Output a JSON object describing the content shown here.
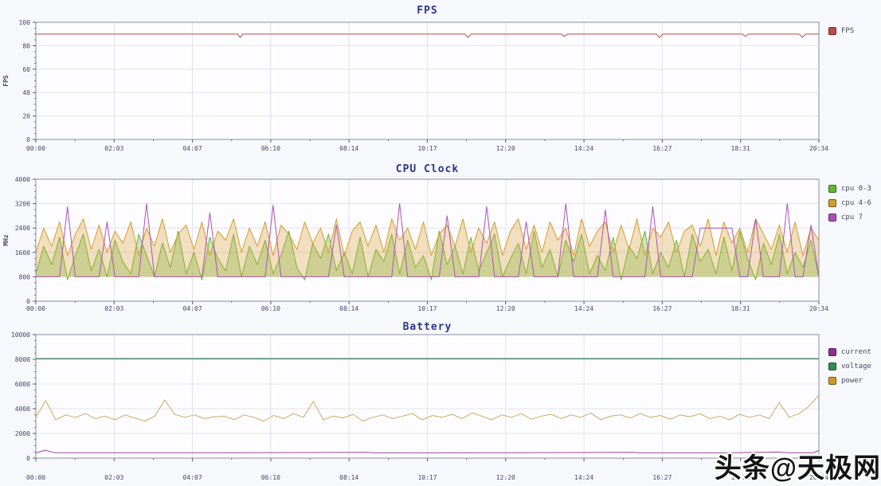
{
  "watermark": {
    "text": "头条@天极网"
  },
  "chart_data": [
    {
      "type": "line",
      "title": "FPS",
      "ylabel": "FPS",
      "ylim": [
        0,
        100
      ],
      "y_ticks": [
        0,
        20,
        40,
        60,
        80,
        100
      ],
      "x_max_seconds": 1234,
      "x_tick_labels": [
        "00:00",
        "02:03",
        "04:07",
        "06:10",
        "08:14",
        "10:17",
        "12:20",
        "14:24",
        "16:27",
        "18:31",
        "20:34"
      ],
      "legend": [
        {
          "label": "FPS",
          "color": "#bf4a45"
        }
      ],
      "series": [
        {
          "name": "FPS",
          "color": "#bf4a45",
          "width": 1,
          "fill": "none",
          "points": [
            [
              0,
              90
            ],
            [
              50,
              90
            ],
            [
              100,
              90
            ],
            [
              150,
              90
            ],
            [
              200,
              90
            ],
            [
              250,
              90
            ],
            [
              310,
              90
            ],
            [
              318,
              90
            ],
            [
              322,
              87
            ],
            [
              326,
              90
            ],
            [
              400,
              90
            ],
            [
              500,
              90
            ],
            [
              600,
              90
            ],
            [
              676,
              90
            ],
            [
              681,
              87
            ],
            [
              686,
              90
            ],
            [
              750,
              90
            ],
            [
              828,
              90
            ],
            [
              833,
              88
            ],
            [
              838,
              90
            ],
            [
              900,
              90
            ],
            [
              978,
              90
            ],
            [
              983,
              87
            ],
            [
              988,
              90
            ],
            [
              1050,
              90
            ],
            [
              1113,
              90
            ],
            [
              1118,
              88
            ],
            [
              1123,
              90
            ],
            [
              1180,
              90
            ],
            [
              1203,
              90
            ],
            [
              1208,
              87
            ],
            [
              1213,
              90
            ],
            [
              1234,
              90
            ]
          ]
        }
      ]
    },
    {
      "type": "line",
      "title": "CPU Clock",
      "ylabel": "MHz",
      "ylim": [
        0,
        4000
      ],
      "y_ticks": [
        0,
        800,
        1600,
        2400,
        3200,
        4000
      ],
      "x_max_seconds": 1234,
      "x_tick_labels": [
        "00:00",
        "02:03",
        "04:07",
        "06:10",
        "08:14",
        "10:17",
        "12:20",
        "14:24",
        "16:27",
        "18:31",
        "20:34"
      ],
      "legend": [
        {
          "label": "cpu 0-3",
          "color": "#63b637"
        },
        {
          "label": "cpu 4-6",
          "color": "#d69c2b"
        },
        {
          "label": "cpu 7",
          "color": "#ab51b8"
        }
      ],
      "series": [
        {
          "name": "cpu 0-3",
          "color": "#63b637",
          "width": 1,
          "fill": "self",
          "fill_opacity": 0.32,
          "fill_base": 800,
          "values": [
            900,
            1800,
            1200,
            2100,
            700,
            1500,
            2200,
            1000,
            1700,
            800,
            2000,
            1300,
            900,
            2200,
            1500,
            800,
            1900,
            1100,
            2300,
            900,
            1600,
            700,
            2100,
            1400,
            1000,
            2200,
            800,
            1800,
            1200,
            2000,
            900,
            1500,
            2300,
            1100,
            700,
            1900,
            1400,
            2200,
            1000,
            1600,
            900,
            2100,
            800,
            1700,
            1300,
            2200,
            900,
            2000,
            1100,
            1500,
            700,
            2300,
            1200,
            1800,
            900,
            2100,
            1000,
            1600,
            2200,
            800,
            1400,
            1900,
            900,
            2300,
            1100,
            1700,
            800,
            2000,
            1300,
            2200,
            900,
            1500,
            1000,
            2100,
            700,
            1800,
            1400,
            2300,
            900,
            1600,
            1100,
            2000,
            800,
            2200,
            1300,
            1700,
            900,
            2100,
            1000,
            2300,
            1400,
            700,
            1900,
            1200,
            2200,
            900,
            1600,
            1100,
            2000,
            800
          ]
        },
        {
          "name": "cpu 4-6",
          "color": "#d69c2b",
          "width": 1,
          "fill": "self",
          "fill_opacity": 0.3,
          "fill_base": 800,
          "values": [
            1600,
            2400,
            1800,
            2600,
            1500,
            2200,
            2700,
            1700,
            2500,
            1600,
            2300,
            1900,
            2600,
            1500,
            2400,
            1800,
            2700,
            1600,
            2200,
            2500,
            1700,
            2600,
            1500,
            2300,
            2000,
            2700,
            1600,
            2400,
            1800,
            2600,
            1500,
            2500,
            2200,
            1700,
            2600,
            1900,
            2400,
            1600,
            2700,
            1500,
            2300,
            2600,
            1800,
            2500,
            1600,
            2700,
            2000,
            2400,
            1700,
            2600,
            1500,
            2200,
            2500,
            1800,
            2700,
            1600,
            2400,
            1900,
            2600,
            1500,
            2300,
            2700,
            1700,
            2500,
            1600,
            2600,
            2000,
            2400,
            1500,
            2700,
            1800,
            2300,
            2600,
            1600,
            2500,
            1700,
            2700,
            1500,
            2400,
            2100,
            2600,
            1600,
            2300,
            2500,
            1800,
            2700,
            1500,
            2600,
            1900,
            2400,
            1600,
            2700,
            2200,
            1700,
            2500,
            1600,
            2600,
            1500,
            2400,
            2000
          ]
        },
        {
          "name": "cpu 7",
          "color": "#ab51b8",
          "width": 1,
          "fill": "none",
          "values": [
            800,
            800,
            800,
            800,
            3100,
            800,
            800,
            800,
            800,
            2600,
            800,
            800,
            800,
            800,
            3200,
            800,
            800,
            800,
            800,
            800,
            800,
            800,
            2900,
            800,
            800,
            800,
            800,
            800,
            800,
            800,
            3150,
            800,
            800,
            800,
            800,
            800,
            800,
            800,
            2500,
            800,
            800,
            800,
            800,
            800,
            800,
            800,
            3200,
            800,
            800,
            800,
            800,
            800,
            2800,
            800,
            800,
            800,
            800,
            3100,
            800,
            800,
            800,
            800,
            2600,
            800,
            800,
            800,
            800,
            3200,
            800,
            800,
            800,
            800,
            3000,
            800,
            800,
            800,
            800,
            800,
            3100,
            800,
            800,
            800,
            800,
            800,
            2400,
            2400,
            2400,
            2400,
            2400,
            800,
            800,
            2700,
            800,
            800,
            800,
            3200,
            800,
            800,
            2500,
            800
          ]
        }
      ]
    },
    {
      "type": "line",
      "title": "Battery",
      "ylabel": "",
      "ylim": [
        0,
        10000
      ],
      "y_ticks": [
        0,
        2000,
        4000,
        6000,
        8000,
        10000
      ],
      "x_max_seconds": 1234,
      "x_tick_labels": [
        "00:00",
        "02:03",
        "04:07",
        "06:10",
        "08:14",
        "10:17",
        "12:20",
        "14:24",
        "16:27",
        "18:31",
        "20:34"
      ],
      "legend": [
        {
          "label": "current",
          "color": "#8e2f8e"
        },
        {
          "label": "voltage",
          "color": "#2f8e4f"
        },
        {
          "label": "power",
          "color": "#d09a28"
        }
      ],
      "series": [
        {
          "name": "voltage",
          "color": "#3f7f5f",
          "width": 1.3,
          "fill": "none",
          "points": [
            [
              0,
              8050
            ],
            [
              1234,
              8050
            ]
          ]
        },
        {
          "name": "power",
          "color": "#cfa95e",
          "width": 1,
          "fill": "none",
          "values": [
            3300,
            4650,
            3100,
            3500,
            3300,
            3600,
            3200,
            3400,
            3100,
            3500,
            3250,
            3000,
            3400,
            4700,
            3550,
            3300,
            3500,
            3200,
            3350,
            3400,
            3100,
            3500,
            3300,
            3000,
            3450,
            3200,
            3600,
            3300,
            4600,
            3100,
            3400,
            3250,
            3550,
            3000,
            3300,
            3500,
            3200,
            3400,
            3600,
            3100,
            3450,
            3300,
            3550,
            3200,
            3650,
            3400,
            3100,
            3500,
            3300,
            3600,
            3150,
            3400,
            3550,
            3200,
            3500,
            3300,
            3650,
            3100,
            3400,
            3500,
            3250,
            3600,
            3300,
            3450,
            3150,
            3500,
            3350,
            3600,
            3200,
            3400,
            3100,
            3550,
            3300,
            3500,
            3200,
            4500,
            3300,
            3600,
            4200,
            5100
          ]
        },
        {
          "name": "current",
          "color": "#9a4a9a",
          "width": 1,
          "fill": "none",
          "points": [
            [
              0,
              420
            ],
            [
              15,
              640
            ],
            [
              30,
              430
            ],
            [
              150,
              430
            ],
            [
              300,
              430
            ],
            [
              520,
              470
            ],
            [
              535,
              425
            ],
            [
              700,
              430
            ],
            [
              940,
              465
            ],
            [
              955,
              425
            ],
            [
              1100,
              430
            ],
            [
              1170,
              490
            ],
            [
              1185,
              430
            ],
            [
              1225,
              430
            ],
            [
              1234,
              620
            ]
          ]
        }
      ]
    }
  ]
}
